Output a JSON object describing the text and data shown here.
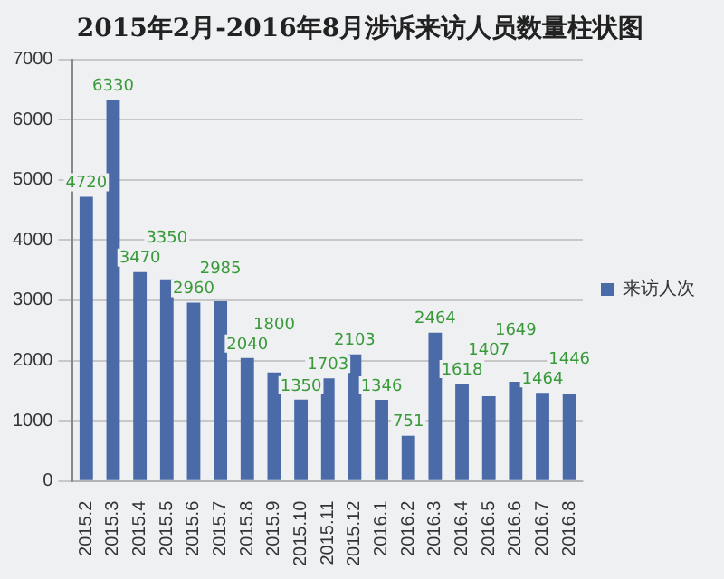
{
  "chart_data": {
    "type": "bar",
    "title": "2015年2月-2016年8月涉诉来访人员数量柱状图",
    "categories": [
      "2015.2",
      "2015.3",
      "2015.4",
      "2015.5",
      "2015.6",
      "2015.7",
      "2015.8",
      "2015.9",
      "2015.10",
      "2015.11",
      "2015.12",
      "2016.1",
      "2016.2",
      "2016.3",
      "2016.4",
      "2016.5",
      "2016.6",
      "2016.7",
      "2016.8"
    ],
    "series": [
      {
        "name": "来访人次",
        "color": "#4a6aa8",
        "values": [
          4720,
          6330,
          3470,
          3350,
          2960,
          2985,
          2040,
          1800,
          1350,
          1703,
          2103,
          1346,
          751,
          2464,
          1618,
          1407,
          1649,
          1464,
          1446
        ]
      }
    ],
    "ylim": [
      0,
      7000
    ],
    "yticks": [
      0,
      1000,
      2000,
      3000,
      4000,
      5000,
      6000,
      7000
    ],
    "grid": "y",
    "legend": "right",
    "data_labels": true
  }
}
